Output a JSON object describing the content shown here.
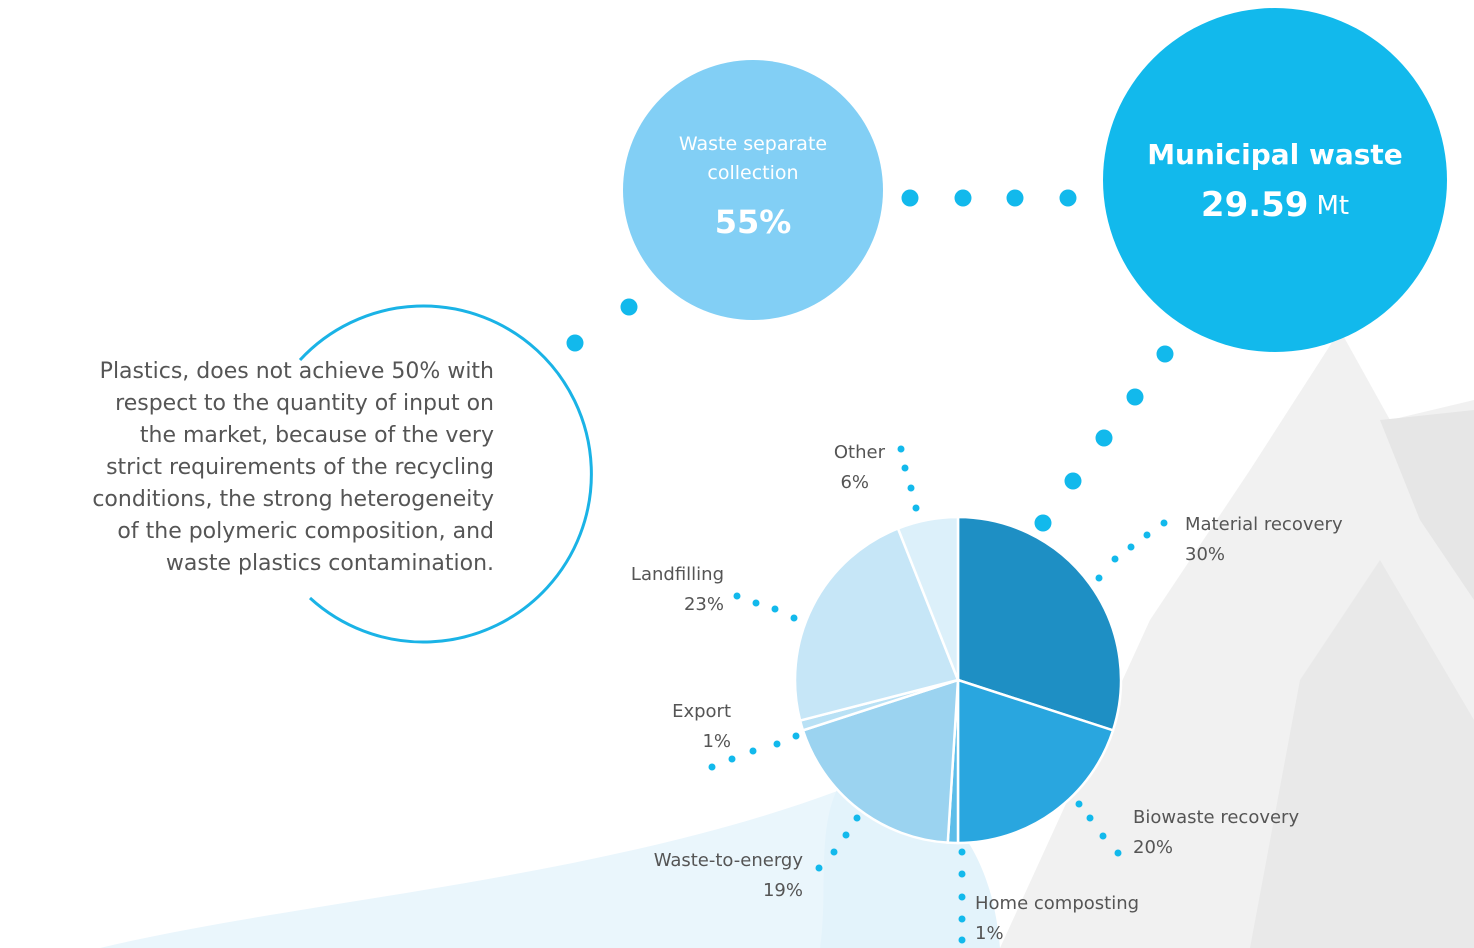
{
  "note": {
    "lines": [
      "Plastics, does not achieve 50% with",
      "respect to the quantity of input on",
      "the market, because of the very",
      "strict requirements of the recycling",
      "conditions, the strong heterogeneity",
      "of the polymeric composition, and",
      "waste plastics contamination."
    ]
  },
  "separate_collection": {
    "label": "Waste separate collection",
    "value_label": "55%"
  },
  "municipal_waste": {
    "label": "Municipal waste",
    "value_label": "29.59",
    "unit": "Mt"
  },
  "chart_data": {
    "type": "pie",
    "categories": [
      "Material recovery",
      "Biowaste recovery",
      "Home composting",
      "Waste-to-energy",
      "Export",
      "Landfilling",
      "Other"
    ],
    "values": [
      30,
      20,
      1,
      19,
      1,
      23,
      6
    ],
    "value_labels": [
      "30%",
      "20%",
      "1%",
      "19%",
      "1%",
      "23%",
      "6%"
    ],
    "colors": [
      "#1e8fc4",
      "#29a6df",
      "#5cbde9",
      "#9bd3f0",
      "#b9e1f5",
      "#c6e6f7",
      "#dcf0fa"
    ]
  }
}
